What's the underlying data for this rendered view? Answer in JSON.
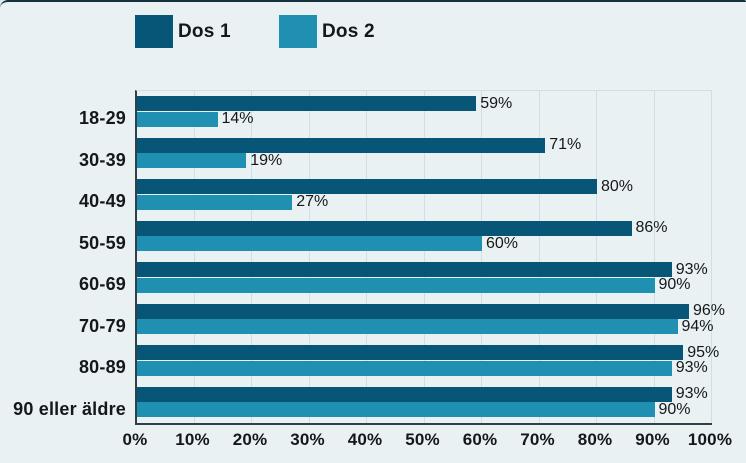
{
  "chart_data": {
    "type": "bar",
    "orientation": "horizontal",
    "title": "",
    "categories": [
      "18-29",
      "30-39",
      "40-49",
      "50-59",
      "60-69",
      "70-79",
      "80-89",
      "90 eller äldre"
    ],
    "series": [
      {
        "name": "Dos 1",
        "color": "#075678",
        "values": [
          59,
          71,
          80,
          86,
          93,
          96,
          95,
          93
        ]
      },
      {
        "name": "Dos 2",
        "color": "#1f90b1",
        "values": [
          14,
          19,
          27,
          60,
          90,
          94,
          93,
          90
        ]
      }
    ],
    "value_suffix": "%",
    "x_ticks": [
      "0%",
      "10%",
      "20%",
      "30%",
      "40%",
      "50%",
      "60%",
      "70%",
      "80%",
      "90%",
      "100%"
    ],
    "xlim": [
      0,
      100
    ],
    "grid": true,
    "legend_position": "top",
    "colors": {
      "background": "#e9f1f3",
      "gridline": "#cde0e8",
      "axis": "#30404a",
      "text": "#14181b"
    }
  }
}
